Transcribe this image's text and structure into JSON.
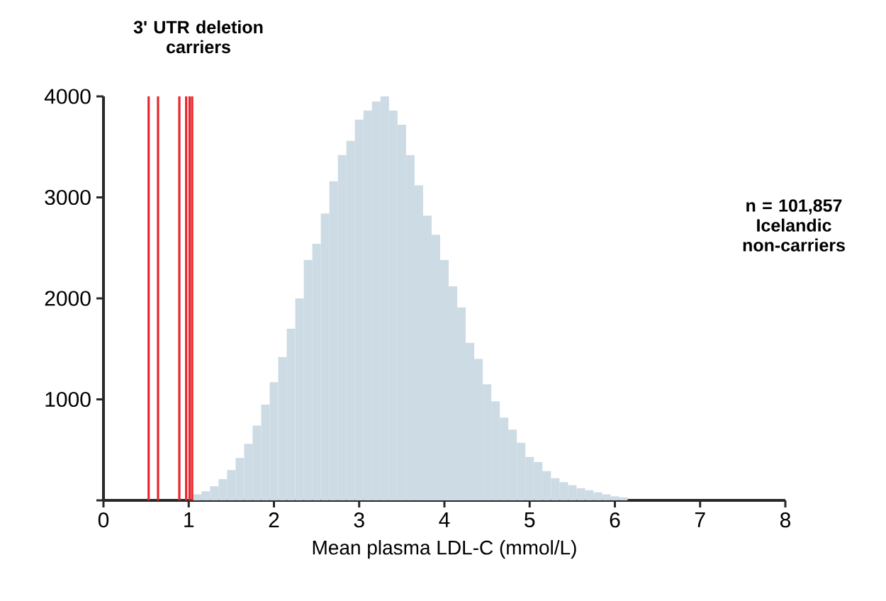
{
  "chart_data": {
    "type": "histogram",
    "xlabel": "Mean plasma LDL-C (mmol/L)",
    "bins": [
      1.05,
      1.15,
      1.25,
      1.35,
      1.45,
      1.55,
      1.65,
      1.75,
      1.85,
      1.95,
      2.05,
      2.15,
      2.25,
      2.35,
      2.45,
      2.55,
      2.65,
      2.75,
      2.85,
      2.95,
      3.05,
      3.15,
      3.25,
      3.35,
      3.45,
      3.55,
      3.65,
      3.75,
      3.85,
      3.95,
      4.05,
      4.15,
      4.25,
      4.35,
      4.45,
      4.55,
      4.65,
      4.75,
      4.85,
      4.95,
      5.05,
      5.15,
      5.25,
      5.35,
      5.45,
      5.55,
      5.65,
      5.75,
      5.85,
      5.95,
      6.05,
      6.15
    ],
    "values": [
      60,
      90,
      140,
      210,
      300,
      420,
      560,
      740,
      950,
      1170,
      1420,
      1700,
      2000,
      2380,
      2540,
      2840,
      3160,
      3420,
      3560,
      3770,
      3860,
      3950,
      4000,
      3860,
      3720,
      3420,
      3120,
      2820,
      2630,
      2380,
      2120,
      1910,
      1560,
      1400,
      1150,
      980,
      820,
      700,
      570,
      430,
      380,
      290,
      220,
      180,
      150,
      120,
      100,
      80,
      60,
      40,
      30
    ],
    "color": "#cddbe4",
    "xlim": [
      0,
      8
    ],
    "xticks": [
      0,
      1,
      2,
      3,
      4,
      5,
      6,
      7,
      8
    ],
    "ylim": [
      0,
      4000
    ],
    "yticks": [
      {
        "value": 0,
        "label": null
      },
      1000,
      2000,
      3000,
      4000
    ],
    "ref_lines": [
      {
        "axis": "x",
        "value": 0.53,
        "color": "#e8262b"
      },
      {
        "axis": "x",
        "value": 0.64,
        "color": "#e8262b"
      },
      {
        "axis": "x",
        "value": 0.89,
        "color": "#e8262b"
      },
      {
        "axis": "x",
        "value": 0.97,
        "color": "#e8262b"
      },
      {
        "axis": "x",
        "value": 1.01,
        "color": "#e8262b"
      },
      {
        "axis": "x",
        "value": 1.04,
        "color": "#e8262b"
      }
    ],
    "annotations": [
      "3' UTR deletion carriers",
      "n = 101,857 Icelandic non-carriers"
    ]
  }
}
